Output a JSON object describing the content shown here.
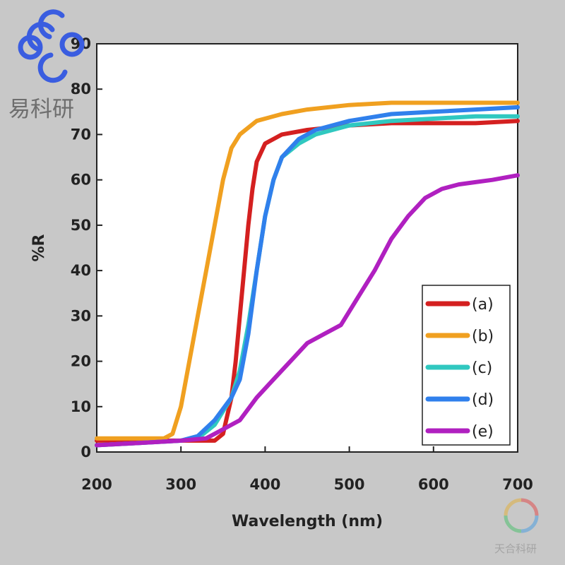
{
  "chart_data": {
    "type": "line",
    "xlabel": "Wavelength (nm)",
    "ylabel": "%R",
    "xlim": [
      200,
      700
    ],
    "ylim": [
      0,
      90
    ],
    "x_ticks": [
      200,
      300,
      400,
      500,
      600,
      700
    ],
    "y_ticks": [
      0,
      10,
      20,
      30,
      40,
      50,
      60,
      70,
      80,
      90
    ],
    "grid": false,
    "legend_position": "bottom-right",
    "series": [
      {
        "name": "(a)",
        "color": "#d42020",
        "points": [
          [
            200,
            2.5
          ],
          [
            250,
            2.5
          ],
          [
            300,
            2.5
          ],
          [
            340,
            2.5
          ],
          [
            350,
            4
          ],
          [
            360,
            12
          ],
          [
            365,
            20
          ],
          [
            370,
            30
          ],
          [
            375,
            40
          ],
          [
            380,
            50
          ],
          [
            385,
            58
          ],
          [
            390,
            64
          ],
          [
            400,
            68
          ],
          [
            420,
            70
          ],
          [
            450,
            71
          ],
          [
            500,
            72
          ],
          [
            550,
            72.5
          ],
          [
            600,
            72.5
          ],
          [
            650,
            72.5
          ],
          [
            700,
            73
          ]
        ]
      },
      {
        "name": "(b)",
        "color": "#f0a020",
        "points": [
          [
            200,
            3
          ],
          [
            250,
            3
          ],
          [
            280,
            3
          ],
          [
            290,
            4
          ],
          [
            300,
            10
          ],
          [
            310,
            20
          ],
          [
            320,
            30
          ],
          [
            330,
            40
          ],
          [
            340,
            50
          ],
          [
            350,
            60
          ],
          [
            360,
            67
          ],
          [
            370,
            70
          ],
          [
            390,
            73
          ],
          [
            420,
            74.5
          ],
          [
            450,
            75.5
          ],
          [
            500,
            76.5
          ],
          [
            550,
            77
          ],
          [
            600,
            77
          ],
          [
            650,
            77
          ],
          [
            700,
            77
          ]
        ]
      },
      {
        "name": "(c)",
        "color": "#30c8c0",
        "points": [
          [
            200,
            1.5
          ],
          [
            250,
            2
          ],
          [
            300,
            2.5
          ],
          [
            320,
            3
          ],
          [
            340,
            6
          ],
          [
            360,
            12
          ],
          [
            370,
            18
          ],
          [
            380,
            28
          ],
          [
            390,
            40
          ],
          [
            400,
            52
          ],
          [
            410,
            60
          ],
          [
            420,
            65
          ],
          [
            440,
            68
          ],
          [
            460,
            70
          ],
          [
            500,
            72
          ],
          [
            550,
            73
          ],
          [
            600,
            73.5
          ],
          [
            650,
            74
          ],
          [
            700,
            74
          ]
        ]
      },
      {
        "name": "(d)",
        "color": "#3080ec",
        "points": [
          [
            200,
            1.5
          ],
          [
            250,
            2
          ],
          [
            300,
            2.5
          ],
          [
            320,
            3.5
          ],
          [
            340,
            7
          ],
          [
            360,
            12
          ],
          [
            370,
            16
          ],
          [
            380,
            26
          ],
          [
            390,
            40
          ],
          [
            400,
            52
          ],
          [
            410,
            60
          ],
          [
            420,
            65
          ],
          [
            440,
            69
          ],
          [
            460,
            71
          ],
          [
            500,
            73
          ],
          [
            550,
            74.5
          ],
          [
            600,
            75
          ],
          [
            650,
            75.5
          ],
          [
            700,
            76
          ]
        ]
      },
      {
        "name": "(e)",
        "color": "#b020c0",
        "points": [
          [
            200,
            1.5
          ],
          [
            250,
            2
          ],
          [
            300,
            2.5
          ],
          [
            330,
            3
          ],
          [
            350,
            5
          ],
          [
            370,
            7
          ],
          [
            390,
            12
          ],
          [
            410,
            16
          ],
          [
            430,
            20
          ],
          [
            450,
            24
          ],
          [
            470,
            26
          ],
          [
            490,
            28
          ],
          [
            510,
            34
          ],
          [
            530,
            40
          ],
          [
            550,
            47
          ],
          [
            570,
            52
          ],
          [
            590,
            56
          ],
          [
            610,
            58
          ],
          [
            630,
            59
          ],
          [
            650,
            59.5
          ],
          [
            670,
            60
          ],
          [
            700,
            61
          ]
        ]
      }
    ]
  },
  "watermarks": {
    "top_left_text": "易科研",
    "bottom_right_text": "天合科研"
  }
}
